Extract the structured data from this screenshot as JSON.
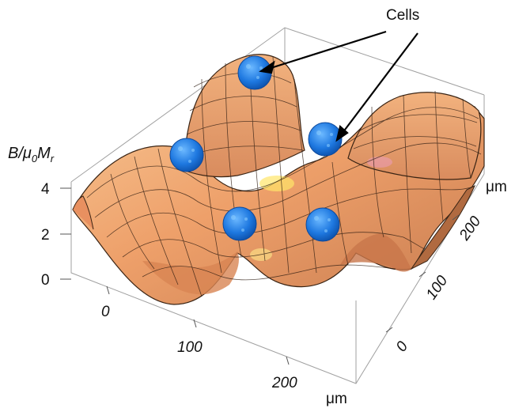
{
  "figure": {
    "callout_label": "Cells",
    "z_axis": {
      "label_main": "B/μ",
      "label_sub1": "0",
      "label_mid": "M",
      "label_sub2": "r",
      "ticks": [
        "4",
        "2",
        "0"
      ]
    },
    "x_axis": {
      "ticks": [
        "0",
        "100",
        "200"
      ],
      "unit": "μm"
    },
    "y_axis": {
      "ticks": [
        "0",
        "100",
        "200"
      ],
      "unit": "μm"
    },
    "colors": {
      "surface": "#f0a070",
      "surface_light": "#f8c89a",
      "surface_dark": "#c8784a",
      "mesh": "#2b1a10",
      "cell": "#1e6fd6",
      "cell_light": "#4aa0ff",
      "box": "#9a9a9a"
    },
    "cell_count": 5
  }
}
